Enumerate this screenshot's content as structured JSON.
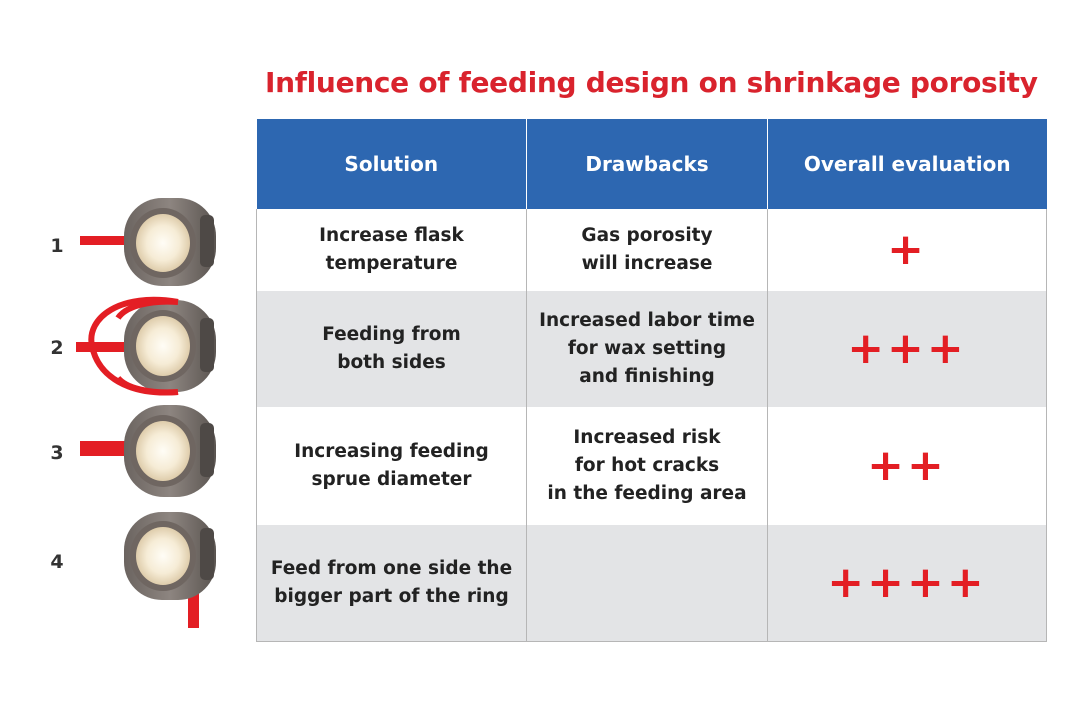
{
  "title": "Influence of feeding design on shrinkage porosity",
  "colors": {
    "title": "#d9232d",
    "header_bg": "#2d67b1",
    "shaded_row": "#e3e4e6",
    "sprue": "#e31e24",
    "plus": "#e31e24"
  },
  "table": {
    "headers": [
      "Solution",
      "Drawbacks",
      "Overall evaluation"
    ],
    "rows": [
      {
        "number": "1",
        "solution": "Increase flask\ntemperature",
        "drawbacks": "Gas porosity\nwill increase",
        "evaluation": "+",
        "evaluation_count": 1
      },
      {
        "number": "2",
        "solution": "Feeding from\nboth sides",
        "drawbacks": "Increased labor time\nfor wax setting\nand finishing",
        "evaluation": "+++",
        "evaluation_count": 3
      },
      {
        "number": "3",
        "solution": "Increasing feeding\nsprue diameter",
        "drawbacks": "Increased risk\nfor hot cracks\nin the feeding area",
        "evaluation": "++",
        "evaluation_count": 2
      },
      {
        "number": "4",
        "solution": "Feed from one side the\nbigger part of the ring",
        "drawbacks": "",
        "evaluation": "++++",
        "evaluation_count": 4
      }
    ]
  },
  "icons": [
    "ring-sprue-single-side-icon",
    "ring-sprue-both-sides-icon",
    "ring-sprue-thick-icon",
    "ring-sprue-bottom-icon"
  ]
}
